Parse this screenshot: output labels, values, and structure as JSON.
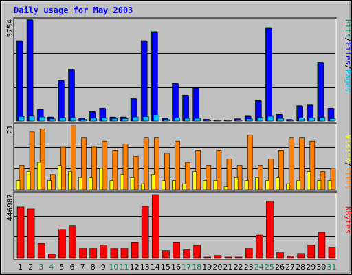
{
  "title": "Daily usage for May 2003",
  "colors": {
    "background": "#c0c0c0",
    "title": "#0000ff",
    "hits": "#00805c",
    "files": "#0000ff",
    "pages": "#00c0ff",
    "visits": "#ffff00",
    "sites": "#ff8000",
    "kbytes": "#ff0000",
    "weekend_label": "#00805c",
    "weekday_label": "#000000"
  },
  "chart_data": [
    {
      "type": "bar",
      "panel": "top",
      "ymax_label": "5754",
      "legend": [
        {
          "name": "Pages",
          "color_key": "pages"
        },
        {
          "name": "Files",
          "color_key": "files"
        },
        {
          "name": "Hits",
          "color_key": "hits"
        }
      ],
      "series": [
        {
          "name": "Hits",
          "values": [
            4550,
            5754,
            660,
            230,
            2290,
            2920,
            170,
            540,
            730,
            230,
            230,
            1280,
            4550,
            5060,
            170,
            2130,
            1470,
            1880,
            100,
            60,
            60,
            130,
            280,
            1160,
            5290,
            380,
            90,
            870,
            910,
            3330,
            730
          ]
        },
        {
          "name": "Files",
          "values": [
            4500,
            5700,
            640,
            215,
            2260,
            2880,
            150,
            510,
            700,
            215,
            215,
            1240,
            4500,
            5000,
            150,
            2100,
            1440,
            1850,
            85,
            50,
            50,
            115,
            260,
            1130,
            5240,
            360,
            80,
            840,
            880,
            3300,
            700
          ]
        },
        {
          "name": "Pages",
          "values": [
            260,
            280,
            230,
            120,
            190,
            200,
            90,
            160,
            190,
            140,
            140,
            230,
            260,
            330,
            80,
            180,
            150,
            150,
            40,
            25,
            25,
            50,
            120,
            210,
            270,
            150,
            40,
            170,
            170,
            210,
            140
          ]
        }
      ]
    },
    {
      "type": "bar",
      "panel": "middle",
      "ymax_label": "21",
      "legend": [
        {
          "name": "Sites",
          "color_key": "sites"
        },
        {
          "name": "Visits",
          "color_key": "visits"
        }
      ],
      "series": [
        {
          "name": "Visits",
          "values": [
            3,
            6,
            9,
            3,
            8,
            6,
            4,
            4,
            7,
            3,
            5,
            4,
            2,
            5,
            3,
            3,
            2,
            6,
            3,
            3,
            1,
            4,
            3,
            4,
            3,
            4,
            2,
            3,
            6,
            3,
            3
          ]
        },
        {
          "name": "Sites",
          "values": [
            8,
            19,
            20,
            5,
            14,
            21,
            17,
            14,
            16,
            13,
            15,
            11,
            17,
            17,
            12,
            16,
            9,
            13,
            8,
            13,
            10,
            8,
            18,
            8,
            10,
            13,
            17,
            17,
            16,
            6,
            7
          ]
        }
      ]
    },
    {
      "type": "bar",
      "panel": "bottom",
      "ymax_label": "446987",
      "legend": [
        {
          "name": "KBytes",
          "color_key": "kbytes"
        }
      ],
      "series": [
        {
          "name": "KBytes",
          "values": [
            360000,
            345000,
            100000,
            25000,
            200000,
            225000,
            70000,
            70000,
            90000,
            65000,
            70000,
            110000,
            365000,
            446987,
            50000,
            110000,
            60000,
            88000,
            5000,
            16000,
            5000,
            5000,
            70000,
            160000,
            400000,
            40000,
            12000,
            30000,
            90000,
            180000,
            75000
          ]
        }
      ]
    }
  ],
  "x_axis": {
    "days": [
      "1",
      "2",
      "3",
      "4",
      "5",
      "6",
      "7",
      "8",
      "9",
      "10",
      "11",
      "12",
      "13",
      "14",
      "15",
      "16",
      "17",
      "18",
      "19",
      "20",
      "21",
      "22",
      "23",
      "24",
      "25",
      "26",
      "27",
      "28",
      "29",
      "30",
      "31"
    ],
    "weekend_days": [
      "3",
      "4",
      "10",
      "11",
      "17",
      "18",
      "24",
      "25",
      "31"
    ]
  }
}
